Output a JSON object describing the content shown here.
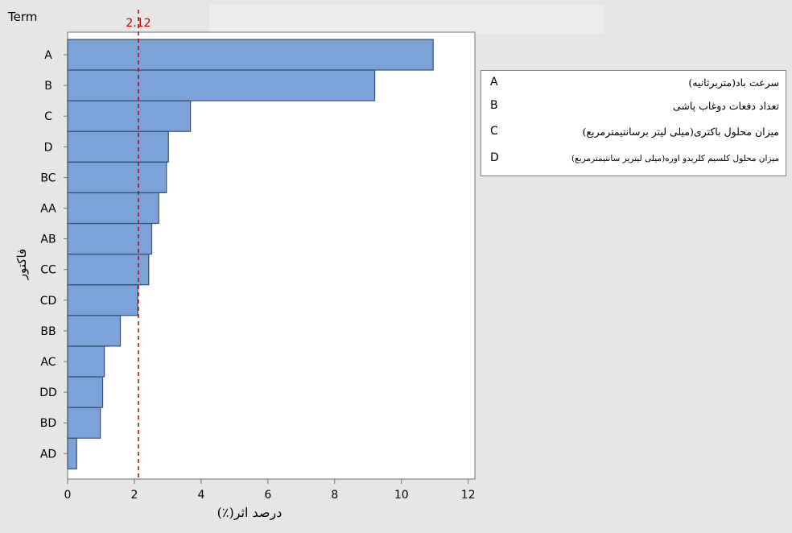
{
  "chart_data": {
    "type": "bar",
    "orientation": "horizontal",
    "title": "",
    "ylabel_top": "Term",
    "ylabel": "فاکتور",
    "xlabel": "درصد اثر(٪)",
    "categories": [
      "A",
      "B",
      "C",
      "D",
      "BC",
      "AA",
      "AB",
      "CC",
      "CD",
      "BB",
      "AC",
      "DD",
      "BD",
      "AD"
    ],
    "values": [
      10.95,
      9.2,
      3.68,
      3.02,
      2.96,
      2.73,
      2.52,
      2.43,
      2.1,
      1.58,
      1.1,
      1.05,
      0.98,
      0.27
    ],
    "xlim": [
      0,
      12.2
    ],
    "xticks": [
      0,
      2,
      4,
      6,
      8,
      10,
      12
    ],
    "reference_line": {
      "value": 2.12,
      "label": "2.12",
      "color": "#c00000"
    },
    "bar_color": "#7ba3d8",
    "bar_edge_color": "#3c4f6b",
    "grid": false,
    "legend_placement": "right"
  },
  "legend": {
    "items": [
      {
        "key": "A",
        "desc": "سرعت باد(متربرثانیه)"
      },
      {
        "key": "B",
        "desc": "تعداد دفعات دوغاب پاشی"
      },
      {
        "key": "C",
        "desc": "میزان محلول باکتری(میلی لیتر برسانتیمترمربع)"
      },
      {
        "key": "D",
        "desc": "میزان محلول کلسیم کلریدو اوره(میلی لیتریر سانتیمترمربع)"
      }
    ]
  }
}
